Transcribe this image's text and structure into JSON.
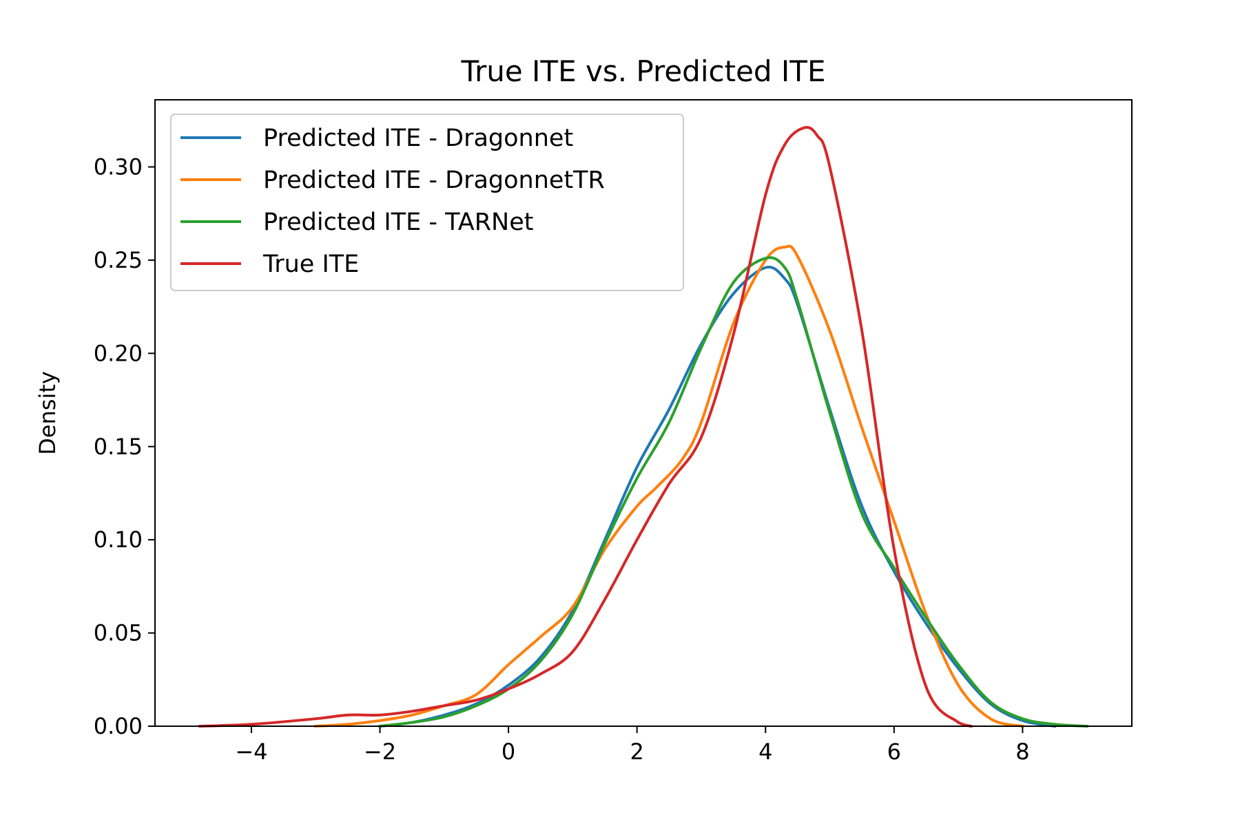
{
  "chart_data": {
    "type": "line",
    "title": "True ITE vs. Predicted ITE",
    "xlabel": "",
    "ylabel": "Density",
    "xlim": [
      -5.5,
      9.7
    ],
    "ylim": [
      0,
      0.336
    ],
    "xticks": [
      -4,
      -2,
      0,
      2,
      4,
      6,
      8
    ],
    "xtick_labels": [
      "−4",
      "−2",
      "0",
      "2",
      "4",
      "6",
      "8"
    ],
    "yticks": [
      0,
      0.05,
      0.1,
      0.15,
      0.2,
      0.25,
      0.3
    ],
    "ytick_labels": [
      "0.00",
      "0.05",
      "0.10",
      "0.15",
      "0.20",
      "0.25",
      "0.30"
    ],
    "grid": false,
    "legend_position": "top-left",
    "series": [
      {
        "name": "Predicted ITE - Dragonnet",
        "color": "#1f77b4",
        "x": [
          -2.0,
          -1.5,
          -1.0,
          -0.5,
          0.0,
          0.5,
          1.0,
          1.5,
          2.0,
          2.5,
          3.0,
          3.5,
          4.0,
          4.3,
          4.5,
          5.0,
          5.5,
          6.0,
          6.5,
          7.0,
          7.5,
          8.0,
          8.5
        ],
        "y": [
          0.0,
          0.002,
          0.006,
          0.012,
          0.022,
          0.037,
          0.062,
          0.1,
          0.139,
          0.17,
          0.205,
          0.232,
          0.246,
          0.24,
          0.226,
          0.17,
          0.118,
          0.083,
          0.055,
          0.031,
          0.012,
          0.003,
          0.0
        ]
      },
      {
        "name": "Predicted ITE - DragonnetTR",
        "color": "#ff7f0e",
        "x": [
          -3.0,
          -2.5,
          -2.0,
          -1.5,
          -1.0,
          -0.5,
          0.0,
          0.5,
          1.0,
          1.5,
          2.0,
          2.3,
          2.7,
          3.0,
          3.5,
          4.0,
          4.3,
          4.5,
          5.0,
          5.5,
          6.0,
          6.5,
          7.0,
          7.5,
          8.0
        ],
        "y": [
          0.0,
          0.001,
          0.003,
          0.006,
          0.011,
          0.017,
          0.033,
          0.048,
          0.064,
          0.095,
          0.118,
          0.128,
          0.143,
          0.163,
          0.216,
          0.25,
          0.257,
          0.252,
          0.212,
          0.16,
          0.11,
          0.06,
          0.022,
          0.004,
          0.0
        ]
      },
      {
        "name": "Predicted ITE - TARNet",
        "color": "#2ca02c",
        "x": [
          -2.0,
          -1.5,
          -1.0,
          -0.5,
          0.0,
          0.5,
          1.0,
          1.5,
          2.0,
          2.5,
          3.0,
          3.5,
          4.0,
          4.3,
          4.5,
          5.0,
          5.5,
          6.0,
          6.5,
          7.0,
          7.5,
          8.0,
          8.5,
          9.0
        ],
        "y": [
          0.0,
          0.002,
          0.005,
          0.011,
          0.02,
          0.035,
          0.06,
          0.098,
          0.133,
          0.163,
          0.203,
          0.238,
          0.251,
          0.246,
          0.228,
          0.168,
          0.114,
          0.085,
          0.058,
          0.033,
          0.013,
          0.004,
          0.001,
          0.0
        ]
      },
      {
        "name": "True ITE",
        "color": "#d62728",
        "x": [
          -4.8,
          -4.0,
          -3.0,
          -2.5,
          -2.0,
          -1.5,
          -1.0,
          -0.5,
          0.0,
          0.5,
          1.0,
          1.5,
          2.0,
          2.5,
          3.0,
          3.5,
          4.0,
          4.3,
          4.6,
          4.8,
          5.0,
          5.5,
          6.0,
          6.5,
          7.0,
          7.2
        ],
        "y": [
          0.0,
          0.001,
          0.004,
          0.006,
          0.006,
          0.008,
          0.011,
          0.014,
          0.02,
          0.028,
          0.04,
          0.068,
          0.1,
          0.13,
          0.155,
          0.21,
          0.285,
          0.312,
          0.321,
          0.317,
          0.3,
          0.212,
          0.095,
          0.021,
          0.002,
          0.0
        ]
      }
    ]
  }
}
